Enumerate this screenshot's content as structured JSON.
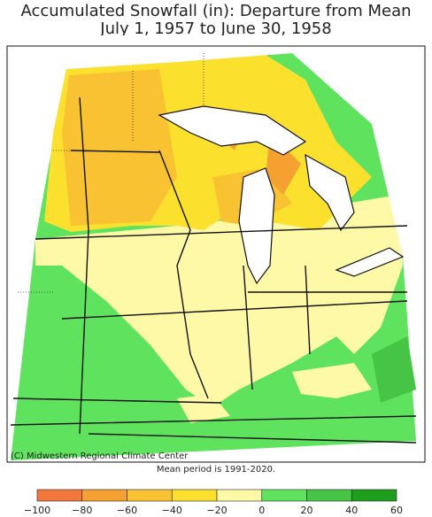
{
  "title": [
    "Accumulated Snowfall (in): Departure from Mean",
    "July 1, 1957 to June 30, 1958"
  ],
  "credit": "(C) Midwestern Regional Climate Center",
  "note": "Mean period is 1991-2020.",
  "legend": {
    "ticks": [
      "−100",
      "−80",
      "−60",
      "−40",
      "−20",
      "0",
      "20",
      "40",
      "60"
    ],
    "colors": [
      "#f2773a",
      "#f5a132",
      "#f8c232",
      "#fbe02e",
      "#fdf9a6",
      "#5fe35f",
      "#45c445",
      "#1d9e1d"
    ]
  }
}
